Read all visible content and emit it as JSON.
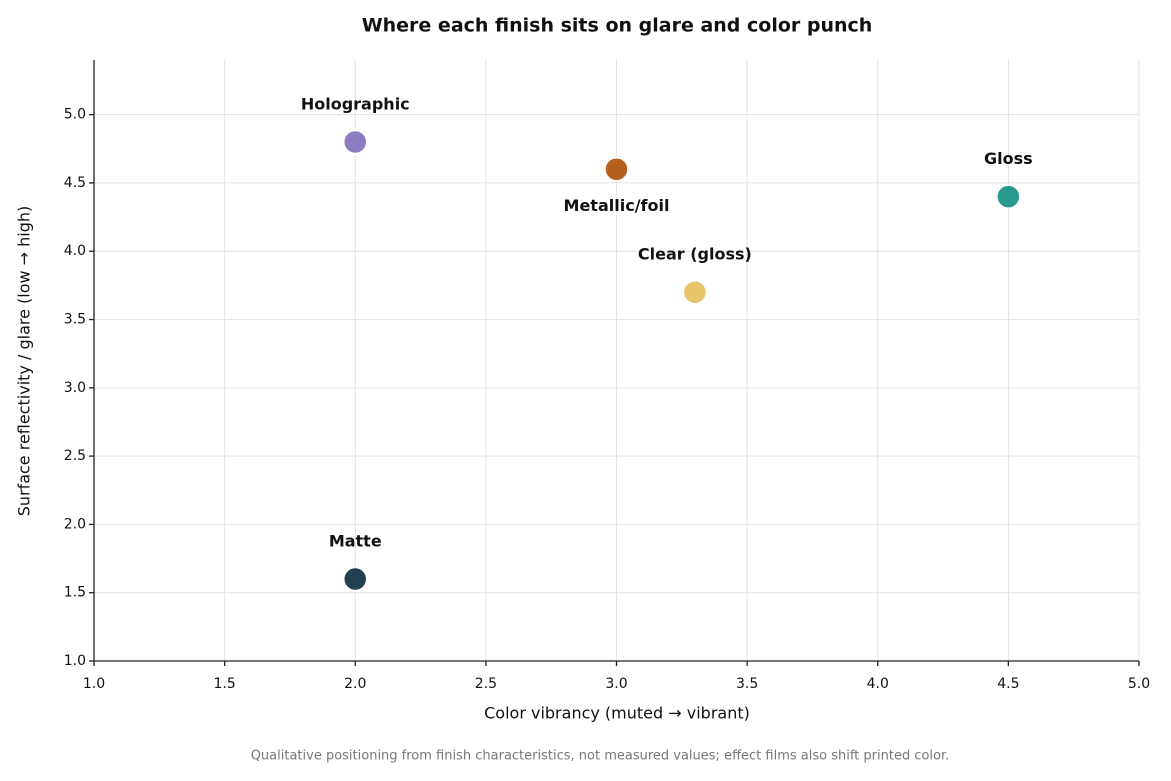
{
  "chart_data": {
    "type": "scatter",
    "title": "Where each finish sits on glare and color punch",
    "x_label": "Color vibrancy  (muted → vibrant)",
    "y_label": "Surface reflectivity / glare  (low → high)",
    "footnote": "Qualitative positioning from finish characteristics, not measured values; effect films also shift printed color.",
    "points": [
      {
        "name": "Matte",
        "color": "#23404f",
        "x": 2.0,
        "y": 1.6
      },
      {
        "name": "Holographic",
        "color": "#8e7cc3",
        "x": 2.0,
        "y": 4.8
      },
      {
        "name": "Metallic/foil",
        "color": "#b5601c",
        "x": 3.0,
        "y": 4.6
      },
      {
        "name": "Clear (gloss)",
        "color": "#e8c46a",
        "x": 3.3,
        "y": 3.7
      },
      {
        "name": "Gloss",
        "color": "#2a9a8c",
        "x": 4.5,
        "y": 4.4
      }
    ],
    "xlim": [
      1,
      5
    ],
    "ylim": [
      1,
      5.4
    ],
    "xticks": [
      {
        "value": 1,
        "label": "1.0"
      },
      1.5,
      {
        "value": 2,
        "label": "2.0"
      },
      2.5,
      {
        "value": 3,
        "label": "3.0"
      },
      3.5,
      {
        "value": 4,
        "label": "4.0"
      },
      4.5,
      {
        "value": 5,
        "label": "5.0"
      }
    ],
    "yticks": [
      {
        "value": 1,
        "label": "1.0"
      },
      1.5,
      {
        "value": 2,
        "label": "2.0"
      },
      2.5,
      {
        "value": 3,
        "label": "3.0"
      },
      3.5,
      {
        "value": 4,
        "label": "4.0"
      },
      4.5,
      {
        "value": 5,
        "label": "5.0"
      }
    ],
    "grid": true
  }
}
